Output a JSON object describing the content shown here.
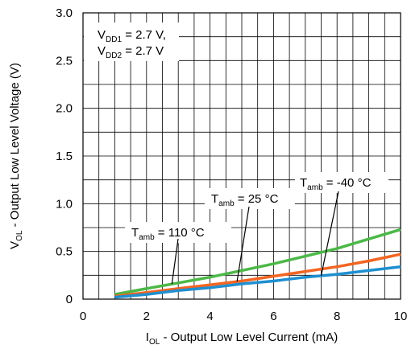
{
  "chart_data": {
    "type": "line",
    "xlabel": {
      "main": "I",
      "sub": "OL",
      "rest": " - Output Low Level Current (mA)"
    },
    "ylabel": {
      "main": "V",
      "sub": "OL",
      "rest": " - Output Low Level Voltage (V)"
    },
    "xlim": [
      0,
      10
    ],
    "ylim": [
      0,
      3.0
    ],
    "x_ticks": [
      "0",
      "2",
      "4",
      "6",
      "8",
      "10"
    ],
    "y_ticks": [
      "0",
      "0.5",
      "1.0",
      "1.5",
      "2.0",
      "2.5",
      "3.0"
    ],
    "grid": true,
    "conditions": [
      {
        "main": "V",
        "sub": "DD1",
        "rest": " = 2.7 V,"
      },
      {
        "main": "V",
        "sub": "DD2",
        "rest": " = 2.7 V"
      }
    ],
    "series": [
      {
        "name": "Tamb = 110 °C",
        "label": {
          "main": "T",
          "sub": "amb",
          "rest": " = 110 °C"
        },
        "color": "#4cb848",
        "x": [
          1,
          2,
          3,
          4,
          5,
          6,
          7,
          8,
          9,
          10
        ],
        "y": [
          0.05,
          0.11,
          0.17,
          0.23,
          0.3,
          0.37,
          0.45,
          0.53,
          0.63,
          0.73
        ]
      },
      {
        "name": "Tamb = 25 °C",
        "label": {
          "main": "T",
          "sub": "amb",
          "rest": " = 25 °C"
        },
        "color": "#f26522",
        "x": [
          1,
          2,
          3,
          4,
          5,
          6,
          7,
          8,
          9,
          10
        ],
        "y": [
          0.03,
          0.07,
          0.11,
          0.15,
          0.19,
          0.24,
          0.29,
          0.34,
          0.4,
          0.47
        ]
      },
      {
        "name": "Tamb = -40 °C",
        "label": {
          "main": "T",
          "sub": "amb",
          "rest": " = -40 °C"
        },
        "color": "#1e8fd0",
        "x": [
          1,
          2,
          3,
          4,
          5,
          6,
          7,
          8,
          9,
          10
        ],
        "y": [
          0.02,
          0.05,
          0.09,
          0.12,
          0.16,
          0.19,
          0.23,
          0.26,
          0.3,
          0.34
        ]
      }
    ]
  }
}
